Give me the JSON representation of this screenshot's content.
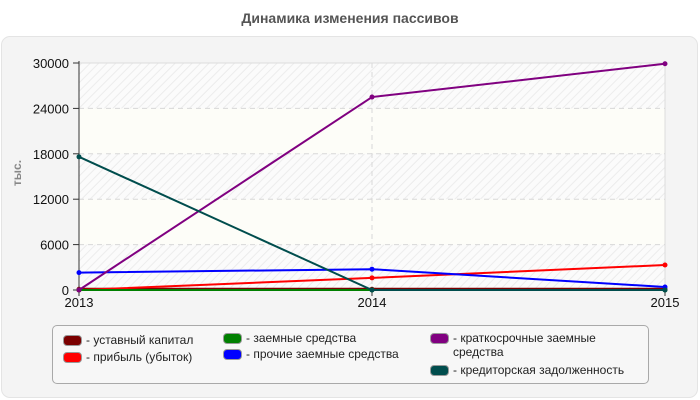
{
  "title": "Динамика изменения пассивов",
  "y_axis_label": "тыс.",
  "legend": {
    "items": [
      {
        "label": "- уставный капитал",
        "color": "#7b0000"
      },
      {
        "label": "- прибыль (убыток)",
        "color": "#ff0000"
      },
      {
        "label": "- заемные средства",
        "color": "#008000"
      },
      {
        "label": "- прочие заемные средства",
        "color": "#0000ff"
      },
      {
        "label": "- краткосрочные заемные средства",
        "color": "#800080"
      },
      {
        "label": "- кредиторская задолженность",
        "color": "#004d4d"
      }
    ]
  },
  "chart_data": {
    "type": "line",
    "title": "Динамика изменения пассивов",
    "xlabel": "",
    "ylabel": "тыс.",
    "categories": [
      "2013",
      "2014",
      "2015"
    ],
    "ylim": [
      0,
      30000
    ],
    "yticks": [
      0,
      6000,
      12000,
      18000,
      24000,
      30000
    ],
    "grid": true,
    "legend_position": "bottom",
    "series": [
      {
        "name": "уставный капитал",
        "color": "#7b0000",
        "values": [
          100,
          100,
          100
        ]
      },
      {
        "name": "прибыль (убыток)",
        "color": "#ff0000",
        "values": [
          0,
          1600,
          3300
        ]
      },
      {
        "name": "заемные средства",
        "color": "#008000",
        "values": [
          0,
          0,
          0
        ]
      },
      {
        "name": "прочие заемные средства",
        "color": "#0000ff",
        "values": [
          2300,
          2750,
          400
        ]
      },
      {
        "name": "краткосрочные заемные средства",
        "color": "#800080",
        "values": [
          0,
          25500,
          29900
        ]
      },
      {
        "name": "кредиторская задолженность",
        "color": "#004d4d",
        "values": [
          17600,
          0,
          0
        ]
      }
    ]
  }
}
